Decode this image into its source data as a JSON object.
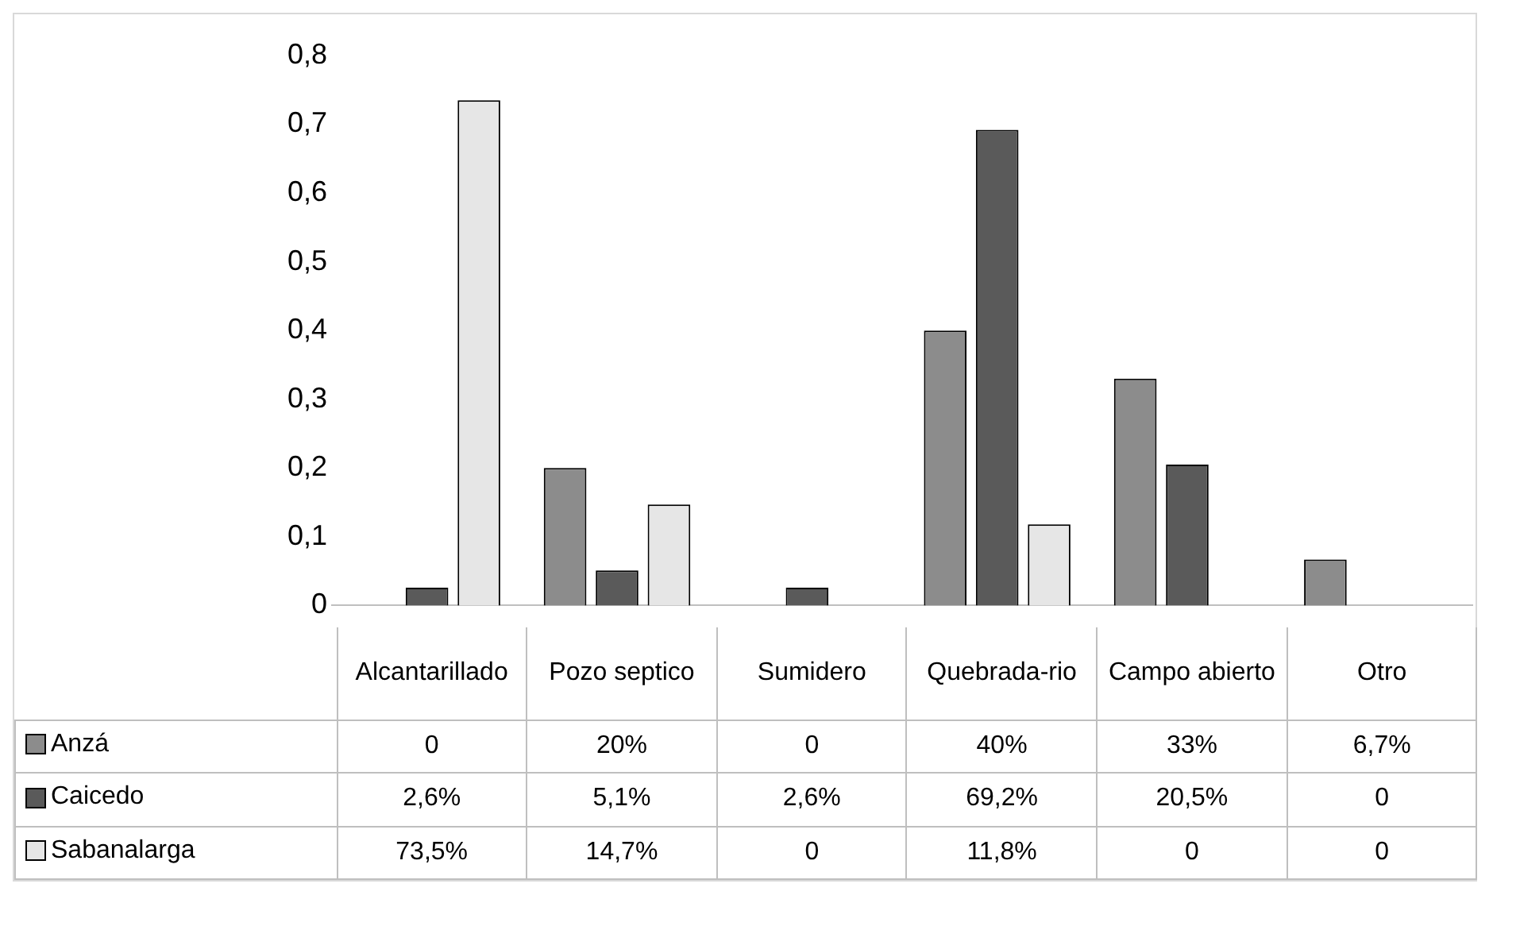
{
  "chart_data": {
    "type": "bar",
    "categories": [
      "Alcantarillado",
      "Pozo septico",
      "Sumidero",
      "Quebrada-rio",
      "Campo abierto",
      "Otro"
    ],
    "series": [
      {
        "name": "Anzá",
        "color": "#8c8c8c",
        "values": [
          0,
          0.2,
          0,
          0.4,
          0.33,
          0.067
        ],
        "value_labels": [
          "0",
          "20%",
          "0",
          "40%",
          "33%",
          "6,7%"
        ]
      },
      {
        "name": "Caicedo",
        "color": "#5a5a5a",
        "values": [
          0.026,
          0.051,
          0.026,
          0.692,
          0.205,
          0
        ],
        "value_labels": [
          "2,6%",
          "5,1%",
          "2,6%",
          "69,2%",
          "20,5%",
          "0"
        ]
      },
      {
        "name": "Sabanalarga",
        "color": "#e6e6e6",
        "values": [
          0.735,
          0.147,
          0,
          0.118,
          0,
          0
        ],
        "value_labels": [
          "73,5%",
          "14,7%",
          "0",
          "11,8%",
          "0",
          "0"
        ]
      }
    ],
    "ylim": [
      0,
      0.8
    ],
    "yticks": [
      0,
      {
        "value": 0.1,
        "label": "0,1"
      },
      {
        "value": 0.2,
        "label": "0,2"
      },
      {
        "value": 0.3,
        "label": "0,3"
      },
      {
        "value": 0.4,
        "label": "0,4"
      },
      {
        "value": 0.5,
        "label": "0,5"
      },
      {
        "value": 0.6,
        "label": "0,6"
      },
      {
        "value": 0.7,
        "label": "0,7"
      },
      {
        "value": 0.8,
        "label": "0,8"
      }
    ],
    "grid": false,
    "legend": "bottom"
  }
}
